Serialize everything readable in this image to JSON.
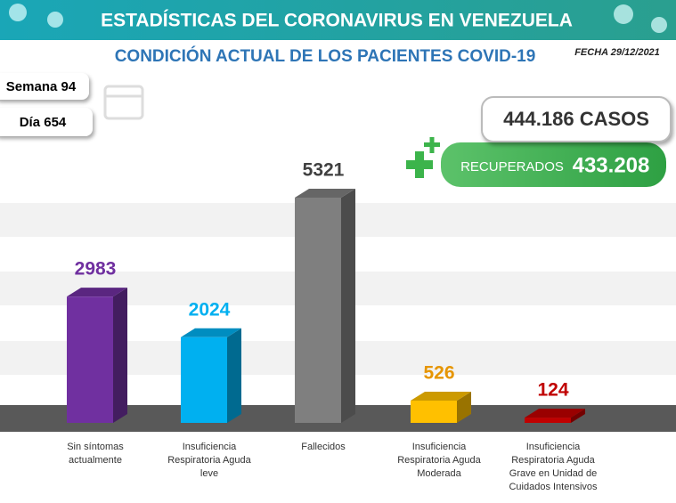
{
  "header": {
    "title": "ESTADÍSTICAS DEL CORONAVIRUS EN VENEZUELA",
    "date": "FECHA 29/12/2021",
    "week": "Semana 94",
    "day": "Día 654",
    "cases": "444.186 CASOS",
    "recovered_label": "RECUPERADOS",
    "recovered_value": "433.208"
  },
  "chart_data": {
    "type": "bar3d",
    "title": "CONDICIÓN ACTUAL DE LOS PACIENTES COVID-19",
    "categories": [
      "Sin síntomas actualmente",
      "Insuficiencia Respiratoria Aguda leve",
      "Fallecidos",
      "Insuficiencia Respiratoria Aguda Moderada",
      "Insuficiencia Respiratoria Aguda Grave en Unidad de Cuidados Intensivos"
    ],
    "values": [
      2983,
      2024,
      5321,
      526,
      124
    ],
    "colors": [
      "#7030a0",
      "#00b0f0",
      "#7f7f7f",
      "#ffc000",
      "#c00000"
    ],
    "label_colors": [
      "#7030a0",
      "#00b0f0",
      "#404040",
      "#e69500",
      "#c00000"
    ]
  }
}
